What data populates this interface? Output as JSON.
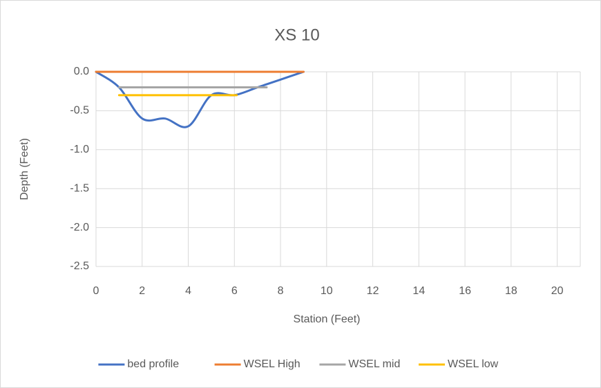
{
  "chart_data": {
    "type": "scatter-smooth",
    "title": "XS 10",
    "x_label": "Station (Feet)",
    "y_label": "Depth (Feet)",
    "xlim": [
      0,
      21
    ],
    "xticks": [
      0,
      2,
      4,
      6,
      8,
      10,
      12,
      14,
      16,
      18,
      20
    ],
    "ylim": [
      -2.5,
      0
    ],
    "yticks": [
      {
        "value": 0,
        "label": "0.0"
      },
      -0.5,
      {
        "value": -1,
        "label": "-1.0"
      },
      -1.5,
      {
        "value": -2,
        "label": "-2.0"
      },
      -2.5
    ],
    "grid": true,
    "legend": "bottom",
    "series": [
      {
        "name": "bed profile",
        "color": "#4472c4",
        "smooth": true,
        "x": [
          0,
          1,
          2,
          3,
          4,
          5,
          6,
          7,
          8,
          9
        ],
        "values": [
          0,
          -0.2,
          -0.6,
          -0.6,
          -0.7,
          -0.3,
          -0.3,
          -0.2,
          -0.1,
          0
        ]
      },
      {
        "name": "WSEL High",
        "color": "#ed7d31",
        "x": [
          0,
          9
        ],
        "values": [
          0,
          0
        ]
      },
      {
        "name": "WSEL mid",
        "color": "#a5a5a5",
        "x": [
          1,
          7.4
        ],
        "values": [
          -0.2,
          -0.2
        ]
      },
      {
        "name": "WSEL low",
        "color": "#ffc000",
        "x": [
          1,
          6.1
        ],
        "values": [
          -0.3,
          -0.3
        ]
      }
    ]
  }
}
